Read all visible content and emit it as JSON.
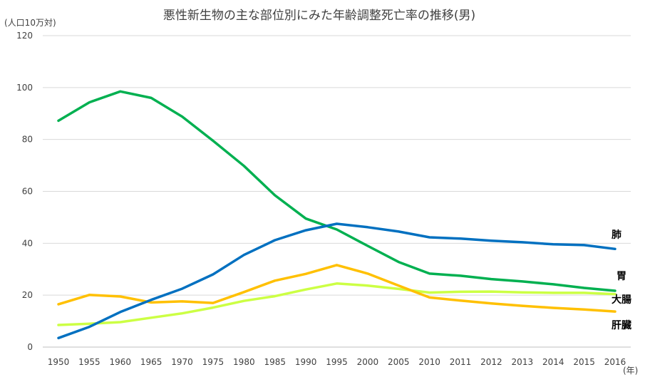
{
  "chart_data": {
    "type": "line",
    "title": "悪性新生物の主な部位別にみた年齢調整死亡率の推移(男)",
    "y_unit": "(人口10万対)",
    "x_unit": "(年)",
    "ylim": [
      0,
      120
    ],
    "y_ticks": [
      "0",
      "20",
      "40",
      "60",
      "80",
      "100",
      "120"
    ],
    "grid": true,
    "categories": [
      "1950",
      "1955",
      "1960",
      "1965",
      "1970",
      "1975",
      "1980",
      "1985",
      "1990",
      "1995",
      "2000",
      "2005",
      "2010",
      "2011",
      "2012",
      "2013",
      "2014",
      "2015",
      "2016"
    ],
    "series": [
      {
        "name": "肺",
        "color": "#0070C0",
        "values": [
          3.5,
          7.8,
          13.5,
          18.2,
          22.5,
          28.0,
          35.5,
          41.2,
          45.0,
          47.5,
          46.2,
          44.5,
          42.3,
          41.8,
          41.0,
          40.4,
          39.6,
          39.3,
          37.8
        ]
      },
      {
        "name": "胃",
        "color": "#00B050",
        "values": [
          87.2,
          94.3,
          98.5,
          96.0,
          88.8,
          79.5,
          69.8,
          58.5,
          49.5,
          45.3,
          39.0,
          32.8,
          28.3,
          27.5,
          26.2,
          25.3,
          24.2,
          22.8,
          21.7
        ]
      },
      {
        "name": "大腸",
        "color": "#CCFF44",
        "values": [
          8.5,
          9.0,
          9.6,
          11.3,
          13.0,
          15.2,
          17.8,
          19.6,
          22.2,
          24.5,
          23.7,
          22.4,
          21.0,
          21.3,
          21.4,
          21.1,
          20.9,
          20.9,
          20.4
        ]
      },
      {
        "name": "肝臓",
        "color": "#FFC000",
        "values": [
          16.5,
          20.1,
          19.5,
          17.2,
          17.6,
          17.0,
          21.2,
          25.6,
          28.2,
          31.6,
          28.3,
          23.7,
          19.1,
          17.9,
          16.8,
          15.9,
          15.1,
          14.5,
          13.7
        ]
      }
    ]
  }
}
